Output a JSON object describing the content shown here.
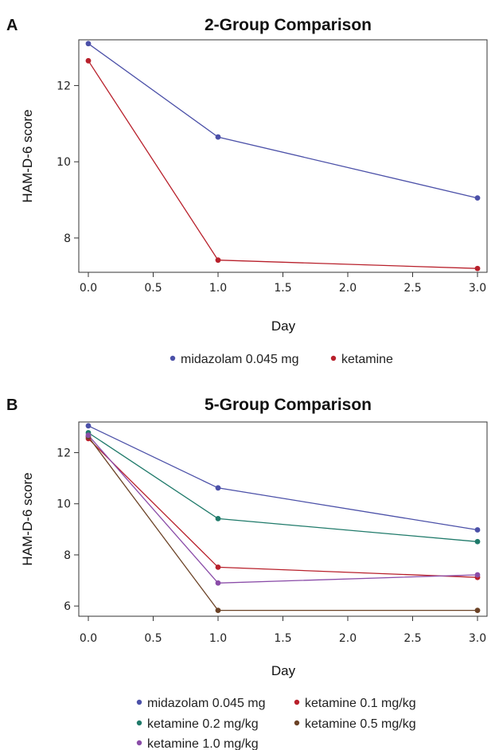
{
  "panels": [
    {
      "letter": "A",
      "chart_data": {
        "type": "line",
        "title": "2-Group Comparison",
        "xlabel": "Day",
        "ylabel": "HAM-D-6 score",
        "x_ticks": [
          "0.0",
          "0.5",
          "1.0",
          "1.5",
          "2.0",
          "2.5",
          "3.0"
        ],
        "y_ticks": [
          "8",
          "10",
          "12"
        ],
        "xlim": [
          0,
          3
        ],
        "ylim": [
          7.1,
          13.2
        ],
        "legend_position": "bottom",
        "series": [
          {
            "name": "midazolam 0.045 mg",
            "color": "#4b50a8",
            "x": [
              0,
              1,
              3
            ],
            "values": [
              13.1,
              10.65,
              9.05
            ]
          },
          {
            "name": "ketamine",
            "color": "#b8202b",
            "x": [
              0,
              1,
              3
            ],
            "values": [
              12.65,
              7.42,
              7.2
            ]
          }
        ]
      }
    },
    {
      "letter": "B",
      "chart_data": {
        "type": "line",
        "title": "5-Group Comparison",
        "xlabel": "Day",
        "ylabel": "HAM-D-6 score",
        "x_ticks": [
          "0.0",
          "0.5",
          "1.0",
          "1.5",
          "2.0",
          "2.5",
          "3.0"
        ],
        "y_ticks": [
          "6",
          "8",
          "10",
          "12"
        ],
        "xlim": [
          0,
          3
        ],
        "ylim": [
          5.6,
          13.2
        ],
        "legend_position": "bottom",
        "series": [
          {
            "name": "midazolam 0.045 mg",
            "color": "#4b50a8",
            "x": [
              0,
              1,
              3
            ],
            "values": [
              13.05,
              10.62,
              8.98
            ]
          },
          {
            "name": "ketamine 0.1 mg/kg",
            "color": "#b8202b",
            "x": [
              0,
              1,
              3
            ],
            "values": [
              12.55,
              7.52,
              7.12
            ]
          },
          {
            "name": "ketamine 0.2 mg/kg",
            "color": "#1f7a6a",
            "x": [
              0,
              1,
              3
            ],
            "values": [
              12.78,
              9.42,
              8.52
            ]
          },
          {
            "name": "ketamine 0.5 mg/kg",
            "color": "#6b4226",
            "x": [
              0,
              1,
              3
            ],
            "values": [
              12.62,
              5.83,
              5.83
            ]
          },
          {
            "name": "ketamine 1.0 mg/kg",
            "color": "#8a4ca8",
            "x": [
              0,
              1,
              3
            ],
            "values": [
              12.68,
              6.9,
              7.22
            ]
          }
        ]
      }
    }
  ]
}
